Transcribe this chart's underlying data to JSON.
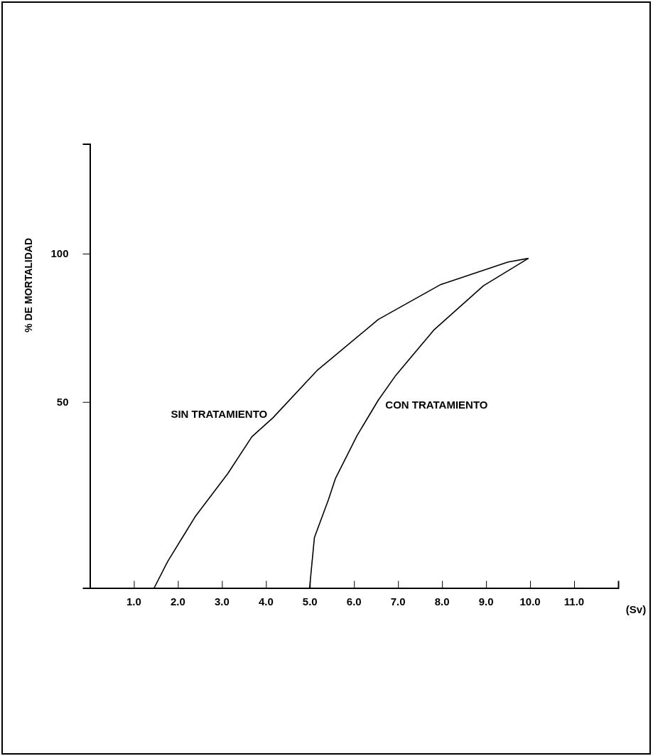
{
  "chart_data": {
    "type": "line",
    "xlabel": "(Sv)",
    "ylabel": "% DE MORTALIDAD",
    "xlim": [
      0,
      12
    ],
    "ylim": [
      -12.7,
      137
    ],
    "xticks": [
      {
        "value": 1,
        "label": "1.0"
      },
      {
        "value": 2,
        "label": "2.0"
      },
      {
        "value": 3,
        "label": "3.0"
      },
      {
        "value": 4,
        "label": "4.0"
      },
      {
        "value": 5,
        "label": "5.0"
      },
      {
        "value": 6,
        "label": "6.0"
      },
      {
        "value": 7,
        "label": "7.0"
      },
      {
        "value": 8,
        "label": "8.0"
      },
      {
        "value": 9,
        "label": "9.0"
      },
      {
        "value": 10,
        "label": "10.0"
      },
      {
        "value": 11,
        "label": "11.0"
      }
    ],
    "yticks": [
      50,
      100
    ],
    "grid": false,
    "legend": false,
    "marker": "none",
    "line_style": "solid",
    "series": [
      {
        "name": "SIN TRATAMIENTO",
        "color": "#000000",
        "x": [
          1.46,
          1.77,
          2.39,
          3.13,
          3.68,
          4.16,
          5.16,
          6.55,
          7.97,
          9.5,
          9.96
        ],
        "values": [
          -12.7,
          -3.7,
          11.3,
          25.8,
          38.3,
          44.7,
          60.6,
          77.8,
          89.6,
          97.2,
          98.4
        ]
      },
      {
        "name": "CON TRATAMIENTO",
        "color": "#000000",
        "x": [
          4.99,
          5.1,
          5.42,
          5.58,
          6.07,
          6.55,
          6.95,
          7.81,
          8.94,
          9.96
        ],
        "values": [
          -12.7,
          4.3,
          17.1,
          24.3,
          38.7,
          50.6,
          59,
          74.2,
          89.2,
          98.4
        ]
      }
    ]
  }
}
